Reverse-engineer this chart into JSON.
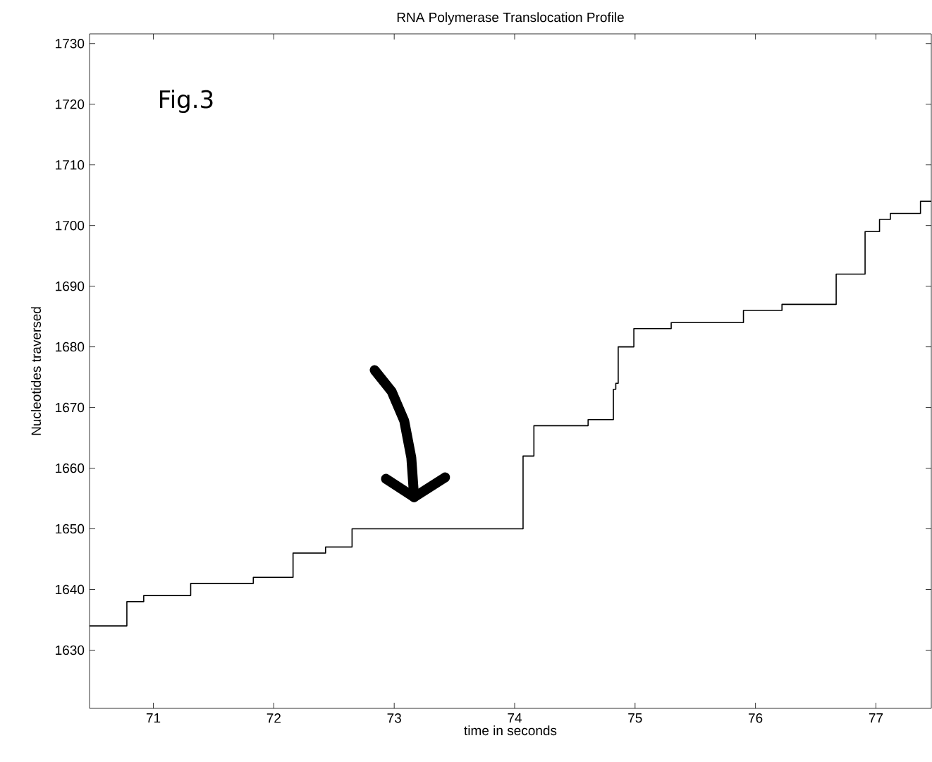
{
  "chart_data": {
    "type": "step",
    "title": "RNA Polymerase Translocation Profile",
    "xlabel": "time in seconds",
    "ylabel": "Nucleotides traversed",
    "annotations": [
      "Fig.3"
    ],
    "xlim": [
      70.47,
      77.46
    ],
    "ylim": [
      1620.4,
      1731.6
    ],
    "xticks": [
      71,
      72,
      73,
      74,
      75,
      76,
      77
    ],
    "yticks": [
      1630,
      1640,
      1650,
      1660,
      1670,
      1680,
      1690,
      1700,
      1710,
      1720,
      1730
    ],
    "series": [
      {
        "color": "#000000",
        "x": [
          70.47,
          70.78,
          70.92,
          71.31,
          71.83,
          72.16,
          72.43,
          72.65,
          74.07,
          74.16,
          74.61,
          74.82,
          74.84,
          74.86,
          74.99,
          75.3,
          75.9,
          76.22,
          76.67,
          76.91,
          77.03,
          77.12,
          77.37,
          77.46
        ],
        "values": [
          1634,
          1638,
          1639,
          1641,
          1642,
          1646,
          1647,
          1650,
          1662,
          1667,
          1668,
          1673,
          1674,
          1680,
          1683,
          1684,
          1686,
          1687,
          1692,
          1699,
          1701,
          1702,
          1704,
          1704
        ]
      }
    ]
  }
}
